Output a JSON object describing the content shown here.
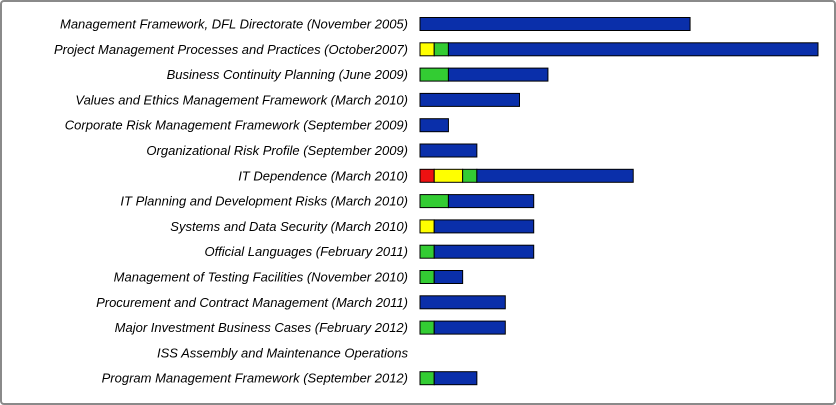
{
  "chart_data": {
    "type": "bar",
    "orientation": "horizontal",
    "stacked": true,
    "title": "",
    "xlabel": "",
    "ylabel": "",
    "grid": false,
    "legend": "none",
    "xlim": [
      0,
      14
    ],
    "colors": {
      "red": "#ee1111",
      "yellow": "#ffff00",
      "green": "#33cc33",
      "blue": "#0a2faa"
    },
    "categories": [
      "Management Framework, DFL Directorate (November 2005)",
      "Project Management Processes and Practices (October2007)",
      "Business Continuity Planning (June 2009)",
      "Values and Ethics Management Framework (March 2010)",
      "Corporate Risk Management Framework (September 2009)",
      "Organizational Risk Profile (September 2009)",
      "IT Dependence (March 2010)",
      "IT Planning and Development Risks (March 2010)",
      "Systems and Data Security (March 2010)",
      "Official Languages (February 2011)",
      "Management of Testing Facilities (November 2010)",
      "Procurement and Contract Management (March 2011)",
      "Major Investment Business Cases (February 2012)",
      "ISS Assembly and Maintenance Operations",
      "Program Management Framework (September 2012)"
    ],
    "series": [
      {
        "color": "red",
        "values": [
          0,
          0,
          0,
          0,
          0,
          0,
          0.5,
          0,
          0,
          0,
          0,
          0,
          0,
          0,
          0
        ]
      },
      {
        "color": "yellow",
        "values": [
          0,
          0.5,
          0,
          0,
          0,
          0,
          1,
          0,
          0.5,
          0,
          0,
          0,
          0,
          0,
          0
        ]
      },
      {
        "color": "green",
        "values": [
          0,
          0.5,
          1,
          0,
          0,
          0,
          0.5,
          1,
          0,
          0.5,
          0.5,
          0,
          0.5,
          0,
          0.5
        ]
      },
      {
        "color": "blue",
        "values": [
          9.5,
          13,
          3.5,
          3.5,
          1,
          2,
          5.5,
          3,
          3.5,
          3.5,
          1,
          3,
          2.5,
          0,
          1.5
        ]
      }
    ]
  }
}
